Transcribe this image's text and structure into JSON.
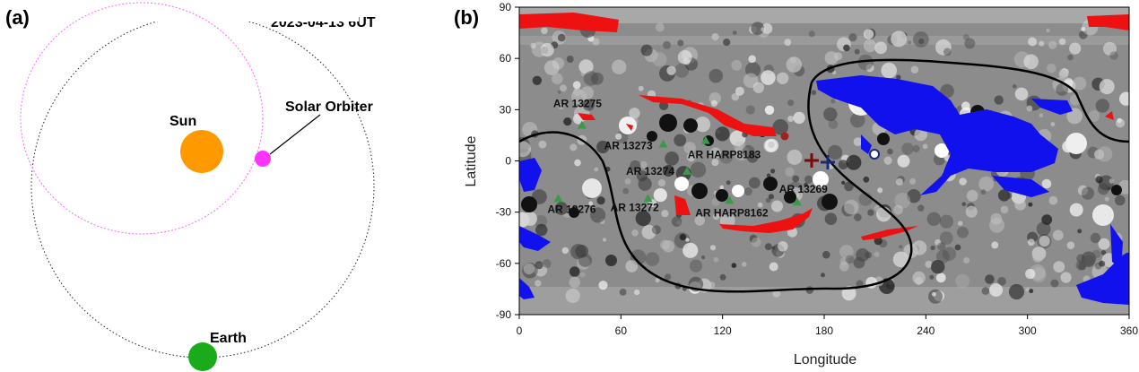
{
  "panel_a": {
    "label": "(a)",
    "date": "2023-04-13 6UT",
    "sun": "Sun",
    "earth": "Earth",
    "spacecraft": "Solar Orbiter",
    "colors": {
      "sun": "#ff9900",
      "earth": "#1aab1a",
      "spacecraft": "#ff33ff",
      "orbit": "#ff66ff"
    }
  },
  "panel_b": {
    "label": "(b)",
    "xlabel": "Longitude",
    "ylabel": "Latitude",
    "xticks": [
      "0",
      "60",
      "120",
      "180",
      "240",
      "300",
      "360"
    ],
    "yticks": [
      "90",
      "60",
      "30",
      "0",
      "-30",
      "-60",
      "-90"
    ],
    "regions": [
      {
        "name": "AR 13275",
        "lon": 37,
        "lat": 21
      },
      {
        "name": "AR 13273",
        "lon": 85,
        "lat": 10
      },
      {
        "name": "AR HARP8183",
        "lon": 110,
        "lat": 12
      },
      {
        "name": "AR 13274",
        "lon": 99,
        "lat": -6
      },
      {
        "name": "AR 13276",
        "lon": 23,
        "lat": -22
      },
      {
        "name": "AR 13272",
        "lon": 76,
        "lat": -22
      },
      {
        "name": "AR HARP8162",
        "lon": 124,
        "lat": -23
      },
      {
        "name": "AR 13269",
        "lon": 164,
        "lat": -24
      }
    ],
    "colors": {
      "positive_open": "#ee1111",
      "negative_open": "#1111ee",
      "region_marker": "#3a9a4a",
      "plus_dark_red": "#7a0a0a",
      "plus_dark_blue": "#1a2a7a"
    }
  }
}
